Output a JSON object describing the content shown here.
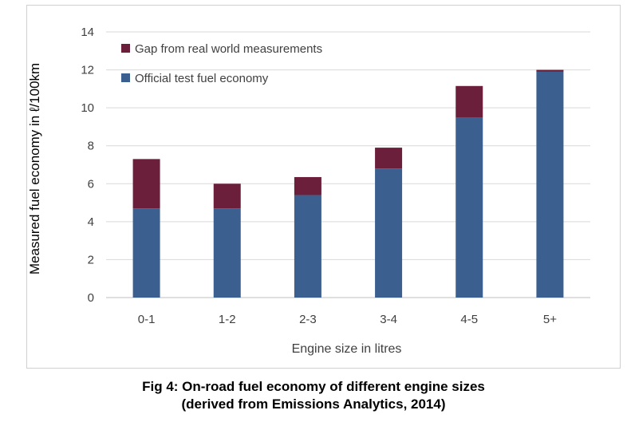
{
  "caption": {
    "line1": "Fig 4: On-road fuel economy of different engine sizes",
    "line2": "(derived from Emissions Analytics, 2014)"
  },
  "chart_data": {
    "type": "bar",
    "stacked": true,
    "categories": [
      "0-1",
      "1-2",
      "2-3",
      "3-4",
      "4-5",
      "5+"
    ],
    "series": [
      {
        "name": "Official test fuel economy",
        "values": [
          4.7,
          4.7,
          5.4,
          6.8,
          9.5,
          11.9
        ],
        "color": "#3b5f8e"
      },
      {
        "name": "Gap from real world measurements",
        "values": [
          2.6,
          1.3,
          0.95,
          1.1,
          1.65,
          0.1
        ],
        "color": "#6b1f3b"
      }
    ],
    "legend_order": [
      "Gap from real world measurements",
      "Official test fuel economy"
    ],
    "legend_position": "top-left",
    "xlabel": "Engine size in litres",
    "ylabel": "Measured fuel economy in ℓ/100km",
    "ylim": [
      0,
      14
    ],
    "yticks": [
      0,
      2,
      4,
      6,
      8,
      10,
      12,
      14
    ],
    "grid": true,
    "gridline_color": "#d9d9d9",
    "axis_color": "#bfbfbf",
    "text_color": "#404040"
  }
}
